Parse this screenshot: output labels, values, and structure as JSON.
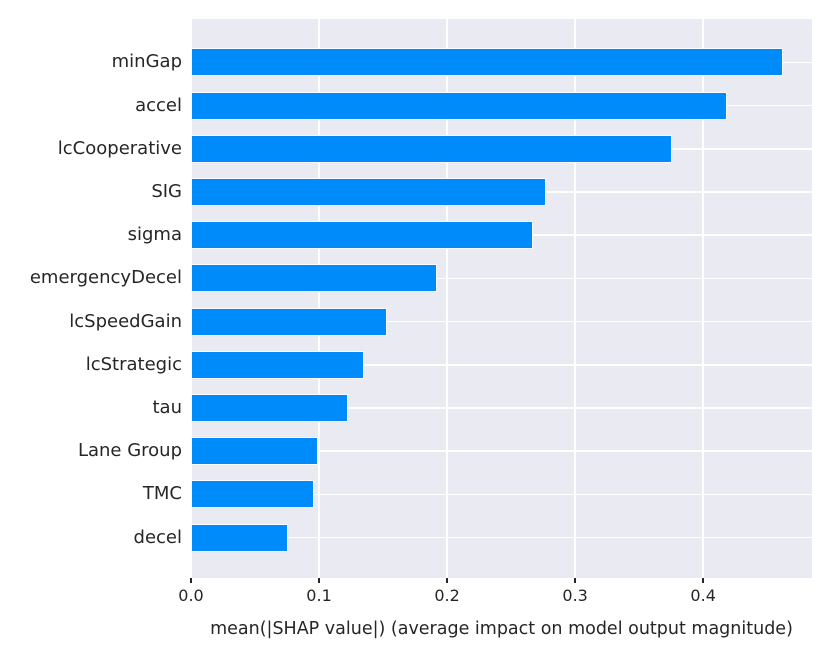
{
  "chart_data": {
    "type": "bar",
    "orientation": "horizontal",
    "title": "",
    "xlabel": "mean(|SHAP value|) (average impact on model output magnitude)",
    "ylabel": "",
    "categories": [
      "minGap",
      "accel",
      "lcCooperative",
      "SIG",
      "sigma",
      "emergencyDecel",
      "lcSpeedGain",
      "lcStrategic",
      "tau",
      "Lane Group",
      "TMC",
      "decel"
    ],
    "values": [
      0.462,
      0.419,
      0.376,
      0.277,
      0.267,
      0.192,
      0.153,
      0.135,
      0.123,
      0.099,
      0.096,
      0.076
    ],
    "xlim": [
      0,
      0.485
    ],
    "xticks": [
      0.0,
      0.1,
      0.2,
      0.3,
      0.4
    ],
    "xtick_labels": [
      "0.0",
      "0.1",
      "0.2",
      "0.3",
      "0.4"
    ],
    "grid": true,
    "legend": false,
    "colors": {
      "bar": "#008bfb",
      "bar_edge": "#fbfbfd",
      "plot_background": "#eaeaf2",
      "grid_line": "#ffffff",
      "text": "#262626",
      "figure_background": "#ffffff"
    }
  }
}
